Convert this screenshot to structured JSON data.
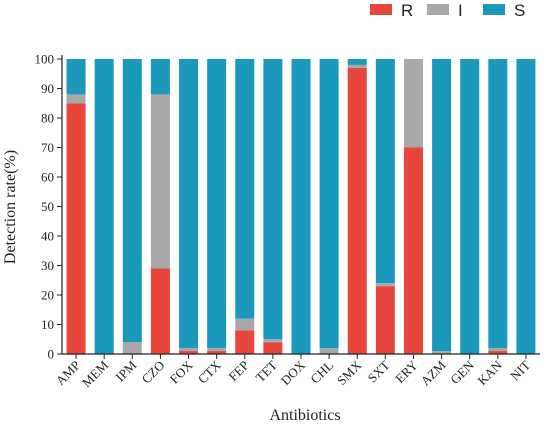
{
  "chart_data": {
    "type": "bar",
    "stacked": true,
    "xlabel": "Antibiotics",
    "ylabel": "Detection rate(%)",
    "ylim": [
      0,
      100
    ],
    "yticks": [
      0,
      10,
      20,
      30,
      40,
      50,
      60,
      70,
      80,
      90,
      100
    ],
    "legend_position": "top-right",
    "categories": [
      "AMP",
      "MEM",
      "IPM",
      "CZO",
      "FOX",
      "CTX",
      "FEP",
      "TET",
      "DOX",
      "CHL",
      "SMX",
      "SXT",
      "ERY",
      "AZM",
      "GEN",
      "KAN",
      "NIT"
    ],
    "series": [
      {
        "name": "R",
        "color": "#e8453c",
        "values": [
          85,
          0,
          0,
          29,
          1,
          1,
          8,
          4,
          0,
          0,
          97,
          23,
          70,
          0,
          0,
          1,
          0
        ]
      },
      {
        "name": "I",
        "color": "#a8a8a8",
        "values": [
          3,
          0,
          4,
          59,
          1,
          1,
          4,
          1,
          0,
          2,
          1,
          1,
          30,
          1,
          0,
          1,
          0
        ]
      },
      {
        "name": "S",
        "color": "#1a99bd",
        "values": [
          12,
          100,
          96,
          12,
          98,
          98,
          88,
          95,
          100,
          98,
          2,
          76,
          0,
          99,
          100,
          98,
          100
        ]
      }
    ]
  }
}
